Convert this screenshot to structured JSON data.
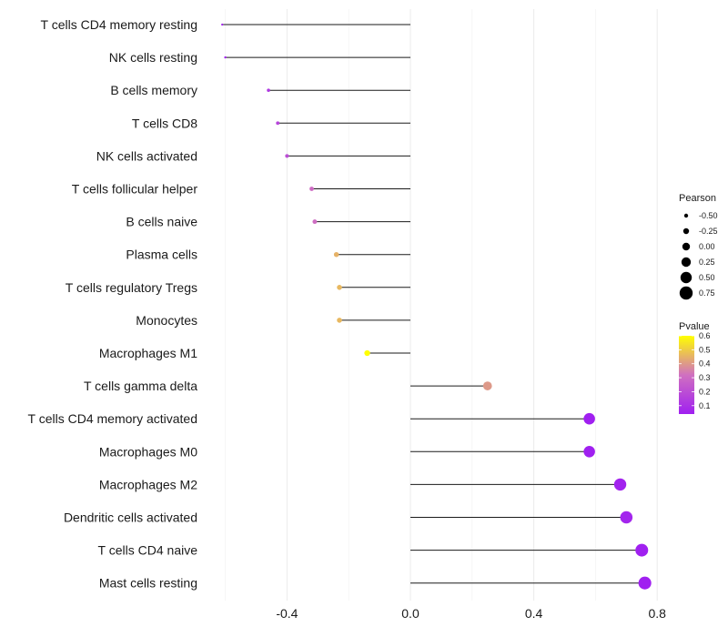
{
  "chart_data": {
    "type": "lollipop",
    "title": "",
    "xlabel": "",
    "ylabel": "",
    "xlim": [
      -0.6,
      0.8
    ],
    "x_ticks": [
      -0.4,
      0.0,
      0.4,
      0.8
    ],
    "x_tick_labels": [
      "-0.4",
      "0.0",
      "0.4",
      "0.8"
    ],
    "grid": true,
    "categories": [
      "T cells CD4 memory resting",
      "NK cells resting",
      "B cells memory",
      "T cells CD8",
      "NK cells activated",
      "T cells follicular helper",
      "B cells naive",
      "Plasma cells",
      "T cells regulatory  Tregs",
      "Monocytes",
      "Macrophages M1",
      "T cells gamma delta",
      "T cells CD4 memory activated",
      "Macrophages M0",
      "Macrophages M2",
      "Dendritic cells activated",
      "T cells CD4 naive",
      "Mast cells resting"
    ],
    "pearson": [
      -0.61,
      -0.6,
      -0.46,
      -0.43,
      -0.4,
      -0.32,
      -0.31,
      -0.24,
      -0.23,
      -0.23,
      -0.14,
      0.25,
      0.58,
      0.58,
      0.68,
      0.7,
      0.75,
      0.76
    ],
    "pvalue": [
      0.05,
      0.05,
      0.13,
      0.17,
      0.2,
      0.3,
      0.31,
      0.45,
      0.46,
      0.46,
      0.6,
      0.4,
      0.04,
      0.04,
      0.05,
      0.06,
      0.04,
      0.04
    ],
    "legend_size": {
      "title": "Pearson",
      "values": [
        -0.5,
        -0.25,
        0.0,
        0.25,
        0.5,
        0.75
      ],
      "labels": [
        "-0.50",
        "-0.25",
        "0.00",
        "0.25",
        "0.50",
        "0.75"
      ]
    },
    "legend_color": {
      "title": "Pvalue",
      "range": [
        0.04,
        0.6
      ],
      "ticks": [
        0.1,
        0.2,
        0.3,
        0.4,
        0.5,
        0.6
      ],
      "tick_labels": [
        "0.1",
        "0.2",
        "0.3",
        "0.4",
        "0.5",
        "0.6"
      ],
      "low_color": "#a020f0",
      "mid_color": "#d070c0",
      "high_color": "#ffff00"
    },
    "legend_position": "right"
  }
}
